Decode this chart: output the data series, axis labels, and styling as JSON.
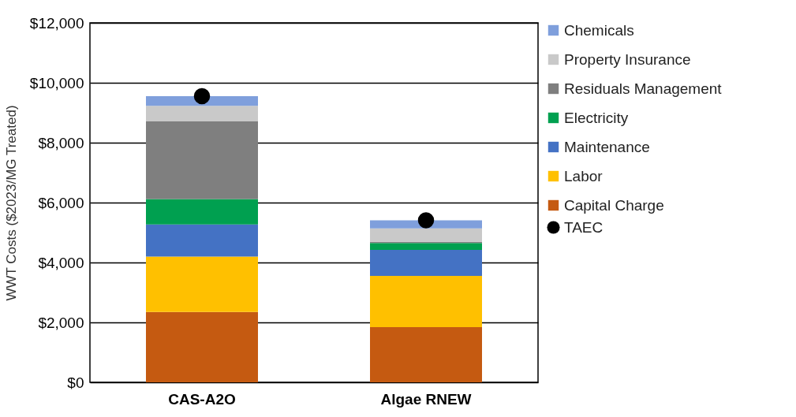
{
  "chart_data": {
    "type": "bar",
    "stacked": true,
    "ylabel": "WWT Costs ($2023/MG Treated)",
    "categories": [
      "CAS-A2O",
      "Algae RNEW"
    ],
    "series": [
      {
        "name": "Capital Charge",
        "color": "#c55a11",
        "values": [
          2350,
          1840
        ]
      },
      {
        "name": "Labor",
        "color": "#ffc000",
        "values": [
          1850,
          1710
        ]
      },
      {
        "name": "Maintenance",
        "color": "#4472c4",
        "values": [
          1070,
          870
        ]
      },
      {
        "name": "Electricity",
        "color": "#00a050",
        "values": [
          850,
          230
        ]
      },
      {
        "name": "Residuals Management",
        "color": "#7f7f7f",
        "values": [
          2590,
          40
        ]
      },
      {
        "name": "Property Insurance",
        "color": "#c9c9c9",
        "values": [
          520,
          450
        ]
      },
      {
        "name": "Chemicals",
        "color": "#7f9fdc",
        "values": [
          320,
          270
        ]
      },
      {
        "name": "TAEC",
        "type": "scatter",
        "color": "#000000",
        "x": [
          "CAS-A2O",
          "Algae RNEW"
        ],
        "values": [
          9550,
          5410
        ]
      }
    ],
    "ylim": [
      0,
      12000
    ],
    "yticks": [
      {
        "value": 0,
        "label": "$0"
      },
      {
        "value": 2000,
        "label": "$2,000"
      },
      {
        "value": 4000,
        "label": "$4,000"
      },
      {
        "value": 6000,
        "label": "$6,000"
      },
      {
        "value": 8000,
        "label": "$8,000"
      },
      {
        "value": 10000,
        "label": "$10,000"
      },
      {
        "value": 12000,
        "label": "$12,000"
      }
    ],
    "grid": "y",
    "legend": "right",
    "marker": "circle"
  }
}
